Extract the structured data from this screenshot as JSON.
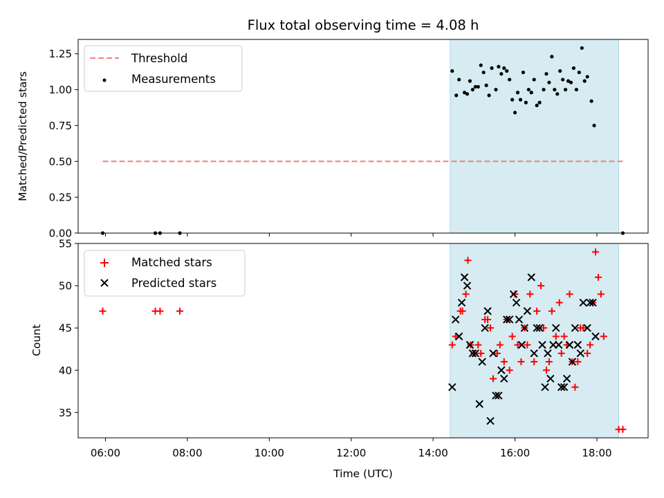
{
  "title": "Flux total observing time = 4.08 h",
  "xlabel": "Time (UTC)",
  "x_ticks": [
    "06:00",
    "08:00",
    "10:00",
    "12:00",
    "14:00",
    "16:00",
    "18:00"
  ],
  "colors": {
    "threshold": "#f08080",
    "shade": "#add8e6",
    "matched": "#ff0000",
    "predicted": "#000000",
    "measurement": "#000000"
  },
  "chart_data": [
    {
      "type": "scatter",
      "ylabel": "Matched/Predicted stars",
      "ylim": [
        0,
        1.35
      ],
      "xlim": [
        "05:20",
        "19:15"
      ],
      "y_ticks": [
        "0.00",
        "0.25",
        "0.50",
        "0.75",
        "1.00",
        "1.25"
      ],
      "shaded_region": [
        "14:25",
        "18:32"
      ],
      "legend": [
        "Threshold",
        "Measurements"
      ],
      "legend_position": "upper left",
      "threshold": {
        "name": "Threshold",
        "y": 0.5,
        "x_from": "05:56",
        "x_to": "18:38"
      },
      "measurements": {
        "name": "Measurements",
        "points": [
          [
            "05:56",
            0.0
          ],
          [
            "07:13",
            0.0
          ],
          [
            "07:20",
            0.0
          ],
          [
            "07:49",
            0.0
          ],
          [
            "14:28",
            1.13
          ],
          [
            "14:34",
            0.96
          ],
          [
            "14:38",
            1.07
          ],
          [
            "14:46",
            0.98
          ],
          [
            "14:50",
            0.97
          ],
          [
            "14:54",
            1.06
          ],
          [
            "14:58",
            1.0
          ],
          [
            "15:02",
            1.02
          ],
          [
            "15:06",
            1.02
          ],
          [
            "15:10",
            1.17
          ],
          [
            "15:14",
            1.12
          ],
          [
            "15:18",
            1.03
          ],
          [
            "15:22",
            0.96
          ],
          [
            "15:26",
            1.15
          ],
          [
            "15:32",
            1.0
          ],
          [
            "15:36",
            1.16
          ],
          [
            "15:40",
            1.11
          ],
          [
            "15:44",
            1.15
          ],
          [
            "15:48",
            1.13
          ],
          [
            "15:52",
            1.07
          ],
          [
            "15:56",
            0.93
          ],
          [
            "16:00",
            0.84
          ],
          [
            "16:04",
            0.98
          ],
          [
            "16:08",
            0.93
          ],
          [
            "16:12",
            1.12
          ],
          [
            "16:16",
            0.91
          ],
          [
            "16:20",
            1.0
          ],
          [
            "16:24",
            0.98
          ],
          [
            "16:28",
            1.07
          ],
          [
            "16:32",
            0.89
          ],
          [
            "16:36",
            0.91
          ],
          [
            "16:42",
            1.0
          ],
          [
            "16:46",
            1.11
          ],
          [
            "16:50",
            1.05
          ],
          [
            "16:54",
            1.23
          ],
          [
            "16:58",
            1.0
          ],
          [
            "17:02",
            0.97
          ],
          [
            "17:06",
            1.13
          ],
          [
            "17:10",
            1.07
          ],
          [
            "17:14",
            1.0
          ],
          [
            "17:18",
            1.06
          ],
          [
            "17:22",
            1.05
          ],
          [
            "17:26",
            1.15
          ],
          [
            "17:30",
            1.0
          ],
          [
            "17:34",
            1.12
          ],
          [
            "17:38",
            1.29
          ],
          [
            "17:42",
            1.06
          ],
          [
            "17:46",
            1.09
          ],
          [
            "17:52",
            0.92
          ],
          [
            "17:56",
            0.75
          ],
          [
            "18:38",
            0.0
          ]
        ]
      }
    },
    {
      "type": "scatter",
      "ylabel": "Count",
      "ylim": [
        32,
        55
      ],
      "xlim": [
        "05:20",
        "19:15"
      ],
      "y_ticks": [
        "35",
        "40",
        "45",
        "50",
        "55"
      ],
      "shaded_region": [
        "14:25",
        "18:32"
      ],
      "legend": [
        "Matched stars",
        "Predicted stars"
      ],
      "legend_position": "upper left",
      "series": [
        {
          "name": "Matched stars",
          "marker": "+",
          "points": [
            [
              "05:56",
              47
            ],
            [
              "07:13",
              47
            ],
            [
              "07:20",
              47
            ],
            [
              "07:49",
              47
            ],
            [
              "14:28",
              43
            ],
            [
              "14:33",
              44
            ],
            [
              "14:40",
              47
            ],
            [
              "14:43",
              47
            ],
            [
              "14:48",
              49
            ],
            [
              "14:51",
              53
            ],
            [
              "14:55",
              43
            ],
            [
              "15:00",
              42
            ],
            [
              "15:06",
              43
            ],
            [
              "15:10",
              42
            ],
            [
              "15:16",
              46
            ],
            [
              "15:20",
              46
            ],
            [
              "15:24",
              45
            ],
            [
              "15:28",
              39
            ],
            [
              "15:34",
              42
            ],
            [
              "15:38",
              43
            ],
            [
              "15:44",
              41
            ],
            [
              "15:48",
              46
            ],
            [
              "15:52",
              40
            ],
            [
              "15:56",
              44
            ],
            [
              "16:00",
              49
            ],
            [
              "16:04",
              43
            ],
            [
              "16:09",
              41
            ],
            [
              "16:14",
              45
            ],
            [
              "16:18",
              43
            ],
            [
              "16:22",
              49
            ],
            [
              "16:28",
              41
            ],
            [
              "16:32",
              47
            ],
            [
              "16:38",
              50
            ],
            [
              "16:42",
              45
            ],
            [
              "16:46",
              40
            ],
            [
              "16:50",
              41
            ],
            [
              "16:54",
              47
            ],
            [
              "17:00",
              44
            ],
            [
              "17:05",
              48
            ],
            [
              "17:08",
              42
            ],
            [
              "17:12",
              44
            ],
            [
              "17:16",
              43
            ],
            [
              "17:20",
              49
            ],
            [
              "17:24",
              41
            ],
            [
              "17:28",
              38
            ],
            [
              "17:32",
              41
            ],
            [
              "17:36",
              45
            ],
            [
              "17:40",
              45
            ],
            [
              "17:46",
              42
            ],
            [
              "17:50",
              43
            ],
            [
              "17:54",
              48
            ],
            [
              "17:58",
              54
            ],
            [
              "18:02",
              51
            ],
            [
              "18:06",
              49
            ],
            [
              "18:10",
              44
            ],
            [
              "18:32",
              33
            ],
            [
              "18:38",
              33
            ]
          ]
        },
        {
          "name": "Predicted stars",
          "marker": "x",
          "points": [
            [
              "14:28",
              38
            ],
            [
              "14:33",
              46
            ],
            [
              "14:38",
              44
            ],
            [
              "14:42",
              48
            ],
            [
              "14:46",
              51
            ],
            [
              "14:50",
              50
            ],
            [
              "14:54",
              43
            ],
            [
              "14:58",
              42
            ],
            [
              "15:02",
              42
            ],
            [
              "15:08",
              36
            ],
            [
              "15:12",
              41
            ],
            [
              "15:16",
              45
            ],
            [
              "15:20",
              47
            ],
            [
              "15:24",
              34
            ],
            [
              "15:28",
              42
            ],
            [
              "15:32",
              37
            ],
            [
              "15:36",
              37
            ],
            [
              "15:40",
              40
            ],
            [
              "15:44",
              39
            ],
            [
              "15:48",
              46
            ],
            [
              "15:52",
              46
            ],
            [
              "15:58",
              49
            ],
            [
              "16:02",
              48
            ],
            [
              "16:06",
              46
            ],
            [
              "16:10",
              43
            ],
            [
              "16:14",
              45
            ],
            [
              "16:18",
              47
            ],
            [
              "16:24",
              51
            ],
            [
              "16:28",
              42
            ],
            [
              "16:32",
              45
            ],
            [
              "16:36",
              45
            ],
            [
              "16:40",
              43
            ],
            [
              "16:44",
              38
            ],
            [
              "16:48",
              42
            ],
            [
              "16:52",
              39
            ],
            [
              "16:56",
              43
            ],
            [
              "17:00",
              45
            ],
            [
              "17:04",
              43
            ],
            [
              "17:08",
              38
            ],
            [
              "17:12",
              38
            ],
            [
              "17:16",
              39
            ],
            [
              "17:20",
              43
            ],
            [
              "17:24",
              41
            ],
            [
              "17:28",
              45
            ],
            [
              "17:32",
              43
            ],
            [
              "17:36",
              42
            ],
            [
              "17:40",
              48
            ],
            [
              "17:46",
              45
            ],
            [
              "17:50",
              48
            ],
            [
              "17:54",
              48
            ],
            [
              "17:58",
              44
            ]
          ]
        }
      ]
    }
  ]
}
